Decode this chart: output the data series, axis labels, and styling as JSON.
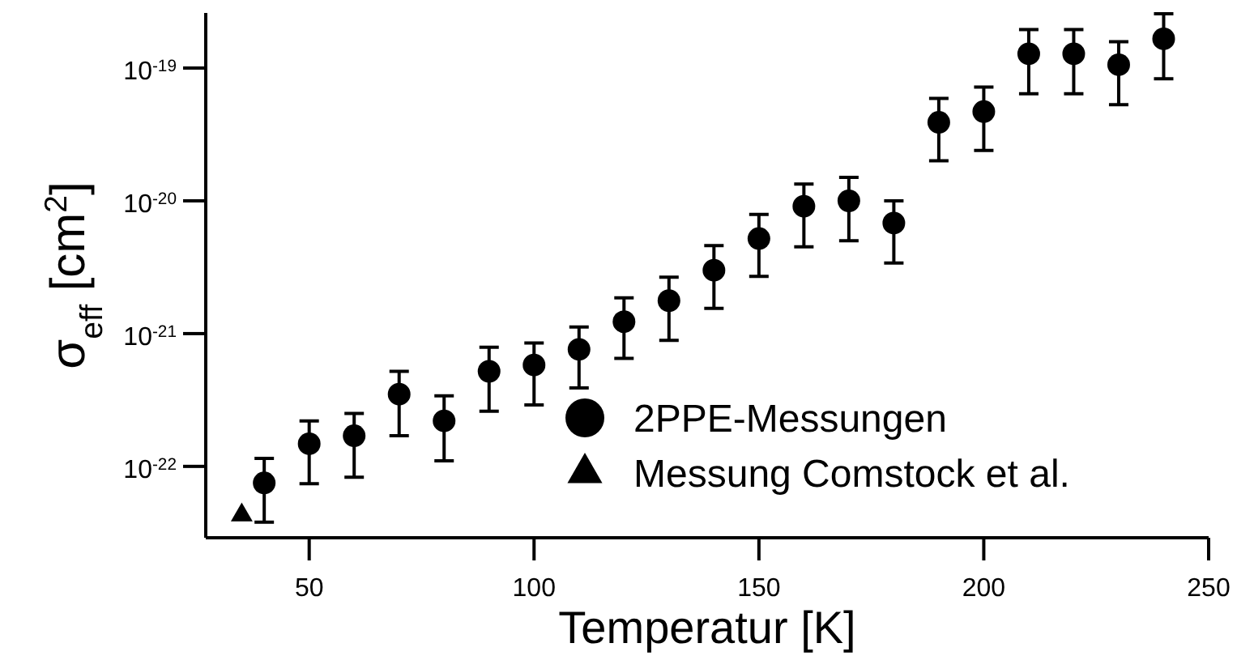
{
  "chart_data": {
    "type": "scatter",
    "xlabel": "Temperatur [K]",
    "ylabel": "σ$_{eff}$ [cm$^{2}$]",
    "log": "y",
    "legend": "bottom right",
    "xlim": [
      27,
      250
    ],
    "xticks": [
      50,
      100,
      150,
      200,
      250
    ],
    "ylim": [
      2.9e-23,
      2.6e-19
    ],
    "yticks": [
      {
        "value": 1e-22,
        "label": "10$^{-22}$"
      },
      {
        "value": 1e-21,
        "label": "10$^{-21}$"
      },
      {
        "value": 1e-20,
        "label": "10$^{-20}$"
      },
      {
        "value": 1e-19,
        "label": "10$^{-19}$"
      }
    ],
    "series": [
      {
        "name": "2PPE-Messungen",
        "color": "#000000",
        "marker": "circle",
        "x": [
          40,
          50,
          60,
          70,
          80,
          90,
          100,
          110,
          120,
          130,
          140,
          150,
          160,
          170,
          180,
          190,
          200,
          210,
          220,
          230,
          240
        ],
        "values": [
          7.5e-23,
          1.48e-22,
          1.7e-22,
          3.5e-22,
          2.2e-22,
          5.2e-22,
          5.8e-22,
          7.6e-22,
          1.23e-21,
          1.77e-21,
          3e-21,
          5.2e-21,
          9.1e-21,
          1e-20,
          6.8e-21,
          3.9e-20,
          4.7e-20,
          1.28e-19,
          1.28e-19,
          1.06e-19,
          1.66e-19
        ],
        "errors": [
          [
            3.8e-23,
            1.15e-22
          ],
          [
            7.4e-23,
            2.2e-22
          ],
          [
            8.3e-23,
            2.5e-22
          ],
          [
            1.7e-22,
            5.2e-22
          ],
          [
            1.1e-22,
            3.4e-22
          ],
          [
            2.6e-22,
            7.9e-22
          ],
          [
            2.9e-22,
            8.5e-22
          ],
          [
            3.9e-22,
            1.12e-21
          ],
          [
            6.5e-22,
            1.86e-21
          ],
          [
            8.9e-22,
            2.66e-21
          ],
          [
            1.55e-21,
            4.6e-21
          ],
          [
            2.7e-21,
            7.9e-21
          ],
          [
            4.5e-21,
            1.34e-20
          ],
          [
            5e-21,
            1.5e-20
          ],
          [
            3.4e-21,
            1e-20
          ],
          [
            2e-20,
            5.9e-20
          ],
          [
            2.4e-20,
            7.2e-20
          ],
          [
            6.4e-20,
            1.95e-19
          ],
          [
            6.4e-20,
            1.95e-19
          ],
          [
            5.3e-20,
            1.58e-19
          ],
          [
            8.3e-20,
            2.56e-19
          ]
        ]
      },
      {
        "name": "Messung Comstock et al.",
        "color": "#000000",
        "marker": "triangle",
        "x": [
          35
        ],
        "values": [
          4.3e-23
        ]
      }
    ]
  }
}
